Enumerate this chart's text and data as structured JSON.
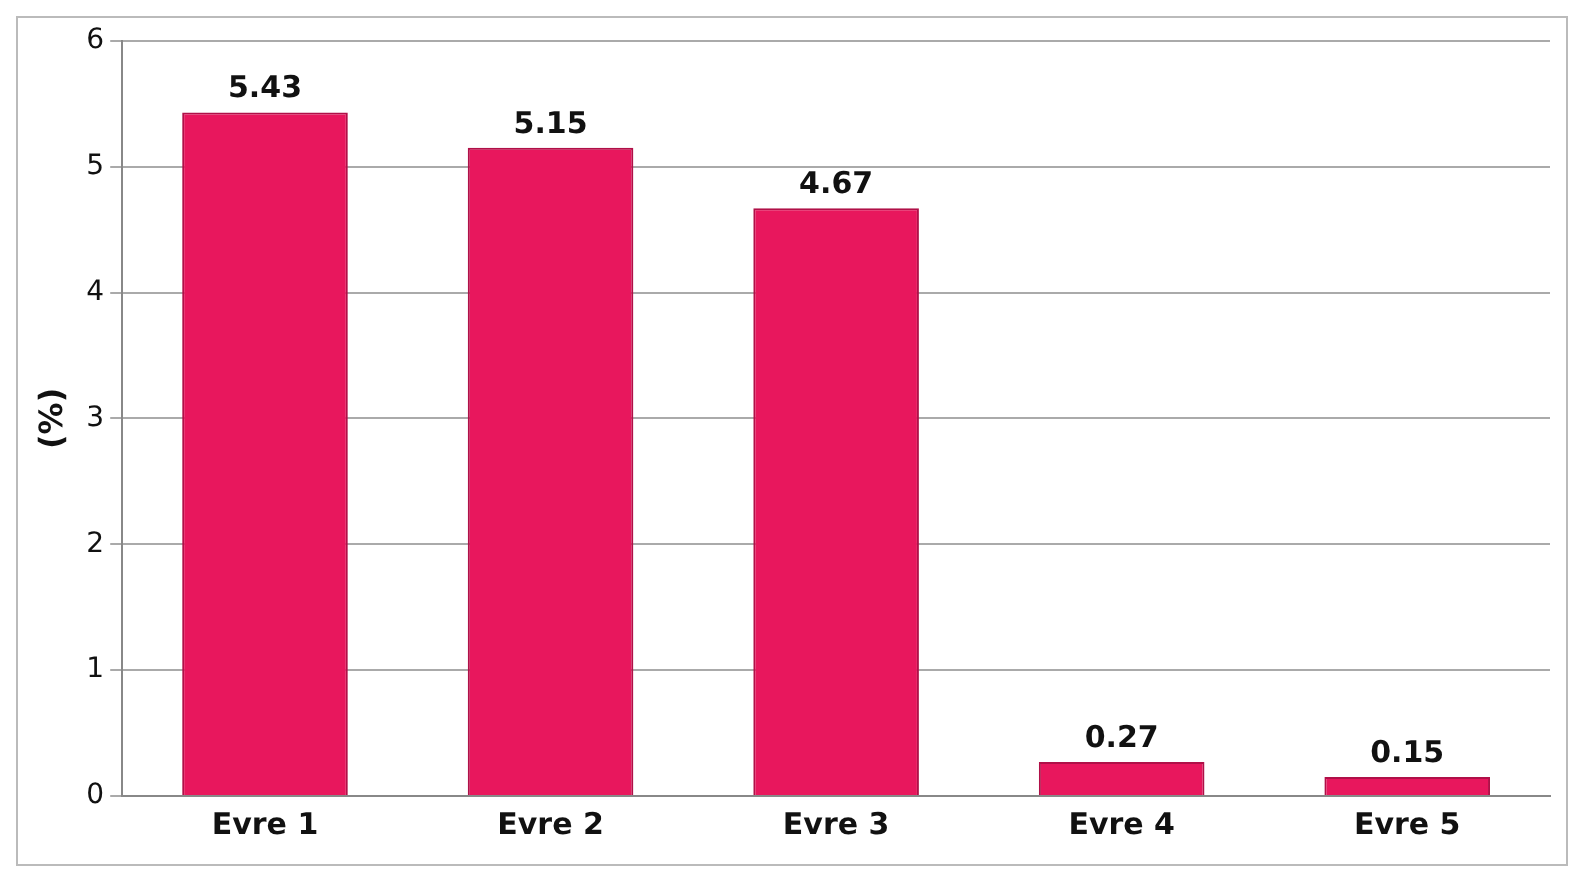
{
  "chart_data": {
    "type": "bar",
    "ylabel": "(%)",
    "categories": [
      "Evre 1",
      "Evre 2",
      "Evre 3",
      "Evre 4",
      "Evre 5"
    ],
    "values": [
      5.43,
      5.15,
      4.67,
      0.27,
      0.15
    ],
    "color": "#e8175d",
    "ylim": [
      0,
      6
    ],
    "yticks": [
      0,
      1,
      2,
      3,
      4,
      5,
      6
    ],
    "grid": "y",
    "data_labels": true,
    "legend": false
  }
}
